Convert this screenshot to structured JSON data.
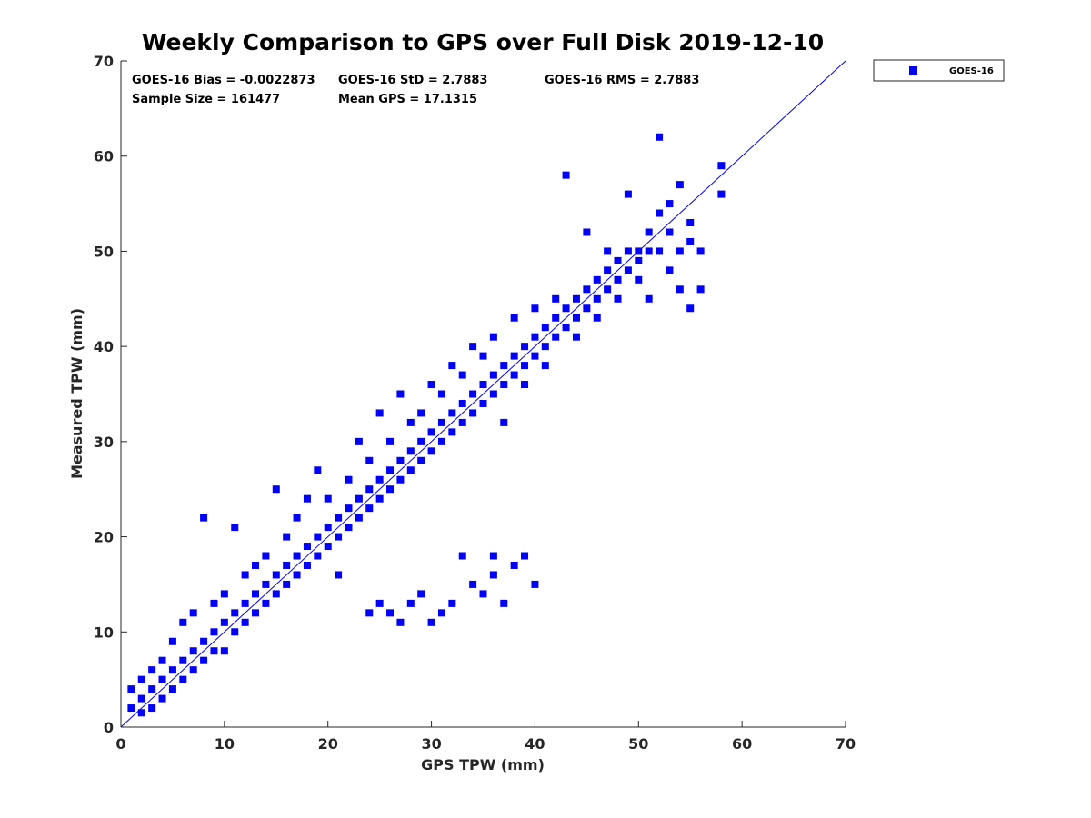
{
  "chart_data": {
    "type": "scatter",
    "title": "Weekly Comparison to GPS over Full Disk 2019-12-10",
    "xlabel": "GPS TPW (mm)",
    "ylabel": "Measured TPW (mm)",
    "xlim": [
      0,
      70
    ],
    "ylim": [
      0,
      70
    ],
    "x_ticks": [
      "0",
      "10",
      "20",
      "30",
      "40",
      "50",
      "60",
      "70"
    ],
    "y_ticks": [
      "0",
      "10",
      "20",
      "30",
      "40",
      "50",
      "60",
      "70"
    ],
    "grid": false,
    "legend_position": "outside-top-right",
    "series_color": "#0000ff",
    "reference_line": {
      "type": "one-to-one",
      "from": [
        0,
        0
      ],
      "to": [
        70,
        70
      ]
    },
    "stats": [
      "GOES-16 Bias = -0.0022873",
      "GOES-16 StD = 2.7883",
      "GOES-16 RMS = 2.7883",
      "Sample Size = 161477",
      "Mean GPS = 17.1315"
    ],
    "series": [
      {
        "name": "GOES-16",
        "marker": "square",
        "color": "#0000ff",
        "points": [
          [
            1,
            2
          ],
          [
            1,
            4
          ],
          [
            2,
            1.5
          ],
          [
            2,
            3
          ],
          [
            2,
            5
          ],
          [
            3,
            2
          ],
          [
            3,
            4
          ],
          [
            3,
            6
          ],
          [
            4,
            3
          ],
          [
            4,
            5
          ],
          [
            4,
            7
          ],
          [
            5,
            4
          ],
          [
            5,
            6
          ],
          [
            5,
            9
          ],
          [
            6,
            5
          ],
          [
            6,
            7
          ],
          [
            6,
            11
          ],
          [
            7,
            6
          ],
          [
            7,
            8
          ],
          [
            7,
            12
          ],
          [
            8,
            7
          ],
          [
            8,
            9
          ],
          [
            8,
            22
          ],
          [
            9,
            8
          ],
          [
            9,
            10
          ],
          [
            9,
            13
          ],
          [
            10,
            8
          ],
          [
            10,
            11
          ],
          [
            10,
            14
          ],
          [
            11,
            10
          ],
          [
            11,
            12
          ],
          [
            11,
            21
          ],
          [
            12,
            11
          ],
          [
            12,
            13
          ],
          [
            12,
            16
          ],
          [
            13,
            12
          ],
          [
            13,
            14
          ],
          [
            13,
            17
          ],
          [
            14,
            13
          ],
          [
            14,
            15
          ],
          [
            14,
            18
          ],
          [
            15,
            14
          ],
          [
            15,
            16
          ],
          [
            15,
            25
          ],
          [
            16,
            15
          ],
          [
            16,
            17
          ],
          [
            16,
            20
          ],
          [
            17,
            16
          ],
          [
            17,
            18
          ],
          [
            17,
            22
          ],
          [
            18,
            17
          ],
          [
            18,
            19
          ],
          [
            18,
            24
          ],
          [
            19,
            18
          ],
          [
            19,
            20
          ],
          [
            19,
            27
          ],
          [
            20,
            19
          ],
          [
            20,
            21
          ],
          [
            20,
            24
          ],
          [
            21,
            20
          ],
          [
            21,
            22
          ],
          [
            21,
            16
          ],
          [
            22,
            21
          ],
          [
            22,
            23
          ],
          [
            22,
            26
          ],
          [
            23,
            22
          ],
          [
            23,
            24
          ],
          [
            23,
            30
          ],
          [
            24,
            23
          ],
          [
            24,
            25
          ],
          [
            24,
            28
          ],
          [
            25,
            24
          ],
          [
            25,
            26
          ],
          [
            25,
            33
          ],
          [
            26,
            25
          ],
          [
            26,
            27
          ],
          [
            26,
            30
          ],
          [
            27,
            26
          ],
          [
            27,
            28
          ],
          [
            27,
            35
          ],
          [
            28,
            27
          ],
          [
            28,
            29
          ],
          [
            28,
            32
          ],
          [
            29,
            28
          ],
          [
            29,
            30
          ],
          [
            29,
            33
          ],
          [
            30,
            29
          ],
          [
            30,
            31
          ],
          [
            30,
            36
          ],
          [
            31,
            30
          ],
          [
            31,
            32
          ],
          [
            31,
            35
          ],
          [
            32,
            31
          ],
          [
            32,
            33
          ],
          [
            32,
            38
          ],
          [
            33,
            32
          ],
          [
            33,
            34
          ],
          [
            33,
            37
          ],
          [
            34,
            33
          ],
          [
            34,
            35
          ],
          [
            34,
            40
          ],
          [
            35,
            34
          ],
          [
            35,
            36
          ],
          [
            35,
            39
          ],
          [
            36,
            35
          ],
          [
            36,
            37
          ],
          [
            36,
            41
          ],
          [
            37,
            36
          ],
          [
            37,
            38
          ],
          [
            37,
            32
          ],
          [
            38,
            37
          ],
          [
            38,
            39
          ],
          [
            38,
            43
          ],
          [
            39,
            38
          ],
          [
            39,
            40
          ],
          [
            39,
            36
          ],
          [
            40,
            39
          ],
          [
            40,
            41
          ],
          [
            40,
            44
          ],
          [
            41,
            40
          ],
          [
            41,
            42
          ],
          [
            41,
            38
          ],
          [
            42,
            41
          ],
          [
            42,
            43
          ],
          [
            42,
            45
          ],
          [
            43,
            42
          ],
          [
            43,
            44
          ],
          [
            43,
            58
          ],
          [
            44,
            43
          ],
          [
            44,
            45
          ],
          [
            44,
            41
          ],
          [
            45,
            44
          ],
          [
            45,
            46
          ],
          [
            45,
            52
          ],
          [
            46,
            45
          ],
          [
            46,
            47
          ],
          [
            46,
            43
          ],
          [
            47,
            46
          ],
          [
            47,
            48
          ],
          [
            47,
            50
          ],
          [
            48,
            47
          ],
          [
            48,
            49
          ],
          [
            48,
            45
          ],
          [
            49,
            48
          ],
          [
            49,
            50
          ],
          [
            49,
            56
          ],
          [
            50,
            49
          ],
          [
            50,
            50
          ],
          [
            50,
            47
          ],
          [
            51,
            50
          ],
          [
            51,
            52
          ],
          [
            51,
            45
          ],
          [
            52,
            50
          ],
          [
            52,
            54
          ],
          [
            52,
            62
          ],
          [
            53,
            48
          ],
          [
            53,
            52
          ],
          [
            53,
            55
          ],
          [
            54,
            46
          ],
          [
            54,
            50
          ],
          [
            54,
            57
          ],
          [
            55,
            44
          ],
          [
            55,
            51
          ],
          [
            55,
            53
          ],
          [
            56,
            50
          ],
          [
            56,
            46
          ],
          [
            58,
            59
          ],
          [
            58,
            56
          ],
          [
            24,
            12
          ],
          [
            26,
            12
          ],
          [
            28,
            13
          ],
          [
            30,
            11
          ],
          [
            32,
            13
          ],
          [
            33,
            18
          ],
          [
            35,
            14
          ],
          [
            36,
            16
          ],
          [
            38,
            17
          ],
          [
            39,
            18
          ],
          [
            40,
            15
          ],
          [
            37,
            13
          ],
          [
            31,
            12
          ],
          [
            27,
            11
          ],
          [
            25,
            13
          ],
          [
            29,
            14
          ],
          [
            34,
            15
          ],
          [
            36,
            18
          ]
        ]
      }
    ]
  }
}
